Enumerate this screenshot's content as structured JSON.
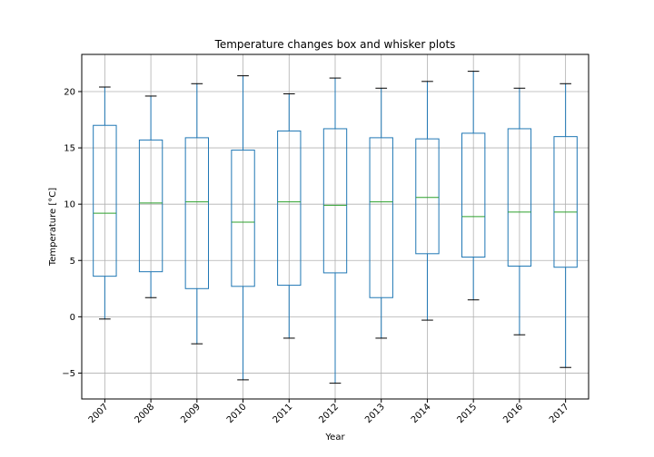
{
  "chart_data": {
    "type": "box",
    "title": "Temperature changes box and whisker plots",
    "xlabel": "Year",
    "ylabel": "Temperature [°C]",
    "ylim": [
      -7.3,
      23.3
    ],
    "yticks": [
      -5,
      0,
      5,
      10,
      15,
      20
    ],
    "ytick_labels": [
      "−5",
      "0",
      "5",
      "10",
      "15",
      "20"
    ],
    "grid": true,
    "categories": [
      "2007",
      "2008",
      "2009",
      "2010",
      "2011",
      "2012",
      "2013",
      "2014",
      "2015",
      "2016",
      "2017"
    ],
    "boxes": [
      {
        "whisker_low": -0.2,
        "q1": 3.6,
        "median": 9.2,
        "q3": 17.0,
        "whisker_high": 20.4
      },
      {
        "whisker_low": 1.7,
        "q1": 4.0,
        "median": 10.1,
        "q3": 15.7,
        "whisker_high": 19.6
      },
      {
        "whisker_low": -2.4,
        "q1": 2.5,
        "median": 10.2,
        "q3": 15.9,
        "whisker_high": 20.7
      },
      {
        "whisker_low": -5.6,
        "q1": 2.7,
        "median": 8.4,
        "q3": 14.8,
        "whisker_high": 21.4
      },
      {
        "whisker_low": -1.9,
        "q1": 2.8,
        "median": 10.2,
        "q3": 16.5,
        "whisker_high": 19.8
      },
      {
        "whisker_low": -5.9,
        "q1": 3.9,
        "median": 9.9,
        "q3": 16.7,
        "whisker_high": 21.2
      },
      {
        "whisker_low": -1.9,
        "q1": 1.7,
        "median": 10.2,
        "q3": 15.9,
        "whisker_high": 20.3
      },
      {
        "whisker_low": -0.3,
        "q1": 5.6,
        "median": 10.6,
        "q3": 15.8,
        "whisker_high": 20.9
      },
      {
        "whisker_low": 1.5,
        "q1": 5.3,
        "median": 8.9,
        "q3": 16.3,
        "whisker_high": 21.8
      },
      {
        "whisker_low": -1.6,
        "q1": 4.5,
        "median": 9.3,
        "q3": 16.7,
        "whisker_high": 20.3
      },
      {
        "whisker_low": -4.5,
        "q1": 4.4,
        "median": 9.3,
        "q3": 16.0,
        "whisker_high": 20.7
      }
    ],
    "colors": {
      "box": "#1f77b4",
      "median": "#2ca02c",
      "cap": "#000000",
      "grid": "#b0b0b0"
    }
  }
}
